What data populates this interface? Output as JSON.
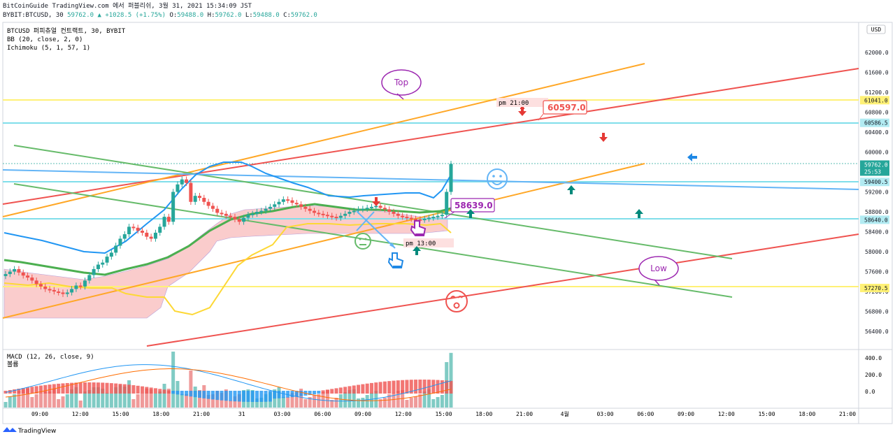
{
  "header": {
    "line1": "BitCoinGuide TradingView.com 에서 퍼블리쉬, 3월 31, 2021 15:34:09 JST",
    "symbol": "BYBIT:BTCUSD, 30",
    "last": "59762.0",
    "change": "▲ +1028.5 (+1.75%)",
    "o_label": "O:",
    "o": "59488.0",
    "h_label": "H:",
    "h": "59762.0",
    "l_label": "L:",
    "l": "59488.0",
    "c_label": "C:",
    "c": "59762.0"
  },
  "legend": {
    "title": "BTCUSD 퍼피츄얼 컨트랙트, 30, BYBIT",
    "bb": "BB (20, close, 2, 0)",
    "ichimoku": "Ichimoku (5, 1, 57, 1)"
  },
  "macd_legend": {
    "macd": "MACD (12, 26, close, 9)",
    "volume": "볼륨"
  },
  "currency_badge": "USD",
  "brand": "TradingView",
  "price_badges": [
    {
      "value": "61041.0",
      "bg": "#fff176",
      "fg": "#131722"
    },
    {
      "value": "60586.5",
      "bg": "#b2ebf2",
      "fg": "#131722"
    },
    {
      "value": "59762.0",
      "sub": "25:53",
      "bg": "#26a69a",
      "fg": "#ffffff"
    },
    {
      "value": "59400.5",
      "bg": "#b2ebf2",
      "fg": "#131722"
    },
    {
      "value": "58640.0",
      "bg": "#b2ebf2",
      "fg": "#131722"
    },
    {
      "value": "57270.5",
      "bg": "#fff176",
      "fg": "#131722"
    }
  ],
  "annotations": {
    "top": "Top",
    "low": "Low",
    "pm21": "pm 21:00",
    "pm13": "pm 13:00",
    "price_high": "60597.0",
    "price_mid": "58639.0"
  },
  "colors": {
    "up": "#26a69a",
    "down": "#ef5350",
    "bb_line": "#2196f3",
    "ichimoku_cloud": "#f8bbbb",
    "ichimoku_green": "#66bb6a",
    "ichimoku_yellow": "#fdd835",
    "trend_red": "#ef5350",
    "trend_orange": "#ffa726",
    "trend_green": "#66bb6a",
    "trend_blue": "#64b5f6",
    "h_cyan": "#80deea",
    "h_yellow": "#fff176",
    "callout_purple": "#9c27b0",
    "macd_line": "#2196f3",
    "signal_line": "#ff6d00"
  },
  "chart_data": {
    "type": "candlestick",
    "title": "BTCUSD 퍼피츄얼 컨트랙트, 30, BYBIT",
    "timeframe": "30",
    "ylim": [
      56200,
      62300
    ],
    "y_ticks": [
      56400,
      56800,
      57200,
      57600,
      58000,
      58400,
      58800,
      59200,
      59600,
      60000,
      60400,
      60800,
      61200,
      61600,
      62000
    ],
    "y_tick_labels": [
      "56400.0",
      "56800.0",
      "57200.0",
      "57600.0",
      "58000.0",
      "58400.0",
      "58800.0",
      "59200.0",
      "59600.0",
      "60000.0",
      "60400.0",
      "60800.0",
      "61200.0",
      "61600.0",
      "62000.0"
    ],
    "x_tick_labels": [
      "09:00",
      "12:00",
      "15:00",
      "18:00",
      "21:00",
      "31",
      "03:00",
      "06:00",
      "09:00",
      "12:00",
      "15:00",
      "18:00",
      "21:00",
      "4월",
      "03:00",
      "06:00",
      "09:00",
      "12:00",
      "15:00",
      "18:00",
      "21:00"
    ],
    "candle_close": [
      57550,
      57600,
      57650,
      57580,
      57520,
      57480,
      57420,
      57350,
      57300,
      57250,
      57230,
      57200,
      57180,
      57150,
      57180,
      57250,
      57320,
      57300,
      57420,
      57530,
      57650,
      57740,
      57780,
      57900,
      57980,
      58120,
      58260,
      58350,
      58500,
      58480,
      58420,
      58380,
      58300,
      58260,
      58380,
      58500,
      58700,
      58600,
      59200,
      59350,
      59450,
      59380,
      59000,
      59120,
      59080,
      59000,
      58920,
      58860,
      58780,
      58760,
      58720,
      58700,
      58650,
      58600,
      58680,
      58740,
      58760,
      58800,
      58820,
      58860,
      58900,
      58950,
      59000,
      59050,
      59030,
      58980,
      58950,
      58900,
      58860,
      58820,
      58780,
      58760,
      58740,
      58720,
      58700,
      58680,
      58720,
      58760,
      58800,
      58820,
      58850,
      58860,
      58880,
      58900,
      58920,
      58880,
      58850,
      58800,
      58760,
      58720,
      58700,
      58680,
      58660,
      58650,
      58640,
      58660,
      58680,
      58700,
      58720,
      58740,
      59200,
      59762
    ],
    "horizontal_levels": [
      61041.0,
      60586.5,
      59400.5,
      58640.0,
      57270.5
    ],
    "macd_y_ticks": [
      "400.0",
      "200.0",
      "0.0"
    ]
  }
}
